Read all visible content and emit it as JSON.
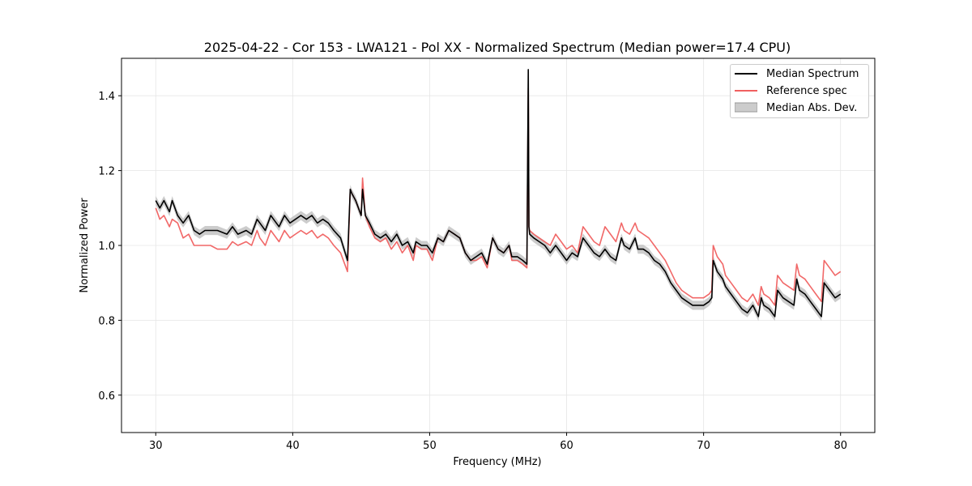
{
  "chart_data": {
    "type": "line",
    "title": "2025-04-22 - Cor 153 - LWA121 - Pol XX - Normalized Spectrum (Median power=17.4 CPU)",
    "xlabel": "Frequency (MHz)",
    "ylabel": "Normalized Power",
    "xlim": [
      27.5,
      82.5
    ],
    "ylim": [
      0.5,
      1.5
    ],
    "x_ticks": [
      30,
      40,
      50,
      60,
      70,
      80
    ],
    "y_ticks": [
      0.6,
      0.8,
      1.0,
      1.2,
      1.4
    ],
    "x_tick_labels": [
      "30",
      "40",
      "50",
      "60",
      "70",
      "80"
    ],
    "y_tick_labels": [
      "0.6",
      "0.8",
      "1.0",
      "1.2",
      "1.4"
    ],
    "grid": true,
    "legend_position": "top-right",
    "series": [
      {
        "name": "Median Spectrum",
        "color": "#000000",
        "x": [
          30.0,
          30.3,
          30.6,
          31.0,
          31.2,
          31.6,
          32.0,
          32.4,
          32.8,
          33.2,
          33.6,
          34.0,
          34.5,
          35.2,
          35.6,
          36.0,
          36.6,
          37.0,
          37.4,
          37.6,
          38.0,
          38.4,
          38.6,
          39.0,
          39.4,
          39.8,
          40.2,
          40.6,
          41.0,
          41.4,
          41.8,
          42.2,
          42.6,
          43.0,
          43.5,
          44.0,
          44.2,
          44.3,
          44.6,
          45.0,
          45.1,
          45.3,
          45.6,
          46.0,
          46.4,
          46.8,
          47.2,
          47.6,
          48.0,
          48.4,
          48.8,
          49.0,
          49.4,
          49.8,
          50.2,
          50.6,
          51.0,
          51.4,
          51.8,
          52.2,
          52.6,
          53.0,
          53.4,
          53.8,
          54.2,
          54.6,
          55.0,
          55.4,
          55.8,
          56.0,
          56.4,
          56.8,
          57.1,
          57.2,
          57.25,
          57.3,
          57.6,
          58.0,
          58.4,
          58.8,
          59.2,
          59.6,
          60.0,
          60.4,
          60.8,
          61.2,
          61.6,
          62.0,
          62.4,
          62.8,
          63.2,
          63.6,
          64.0,
          64.2,
          64.6,
          65.0,
          65.2,
          65.6,
          66.0,
          66.4,
          66.8,
          67.2,
          67.6,
          68.0,
          68.4,
          68.8,
          69.2,
          69.6,
          70.0,
          70.4,
          70.6,
          70.7,
          71.0,
          71.4,
          71.6,
          72.0,
          72.4,
          72.8,
          73.2,
          73.6,
          74.0,
          74.2,
          74.4,
          74.8,
          75.2,
          75.4,
          75.8,
          76.2,
          76.6,
          76.8,
          77.0,
          77.4,
          77.8,
          78.2,
          78.6,
          78.8,
          79.2,
          79.6,
          80.0
        ],
        "values": [
          1.12,
          1.1,
          1.12,
          1.09,
          1.12,
          1.08,
          1.06,
          1.08,
          1.04,
          1.03,
          1.04,
          1.04,
          1.04,
          1.03,
          1.05,
          1.03,
          1.04,
          1.03,
          1.07,
          1.06,
          1.04,
          1.08,
          1.07,
          1.05,
          1.08,
          1.06,
          1.07,
          1.08,
          1.07,
          1.08,
          1.06,
          1.07,
          1.06,
          1.04,
          1.02,
          0.96,
          1.15,
          1.14,
          1.12,
          1.08,
          1.15,
          1.08,
          1.06,
          1.03,
          1.02,
          1.03,
          1.01,
          1.03,
          1.0,
          1.01,
          0.98,
          1.01,
          1.0,
          1.0,
          0.98,
          1.02,
          1.01,
          1.04,
          1.03,
          1.02,
          0.98,
          0.96,
          0.97,
          0.98,
          0.95,
          1.02,
          0.99,
          0.98,
          1.0,
          0.97,
          0.97,
          0.96,
          0.95,
          1.47,
          1.05,
          1.03,
          1.02,
          1.01,
          1.0,
          0.98,
          1.0,
          0.98,
          0.96,
          0.98,
          0.97,
          1.02,
          1.0,
          0.98,
          0.97,
          0.99,
          0.97,
          0.96,
          1.02,
          1.0,
          0.99,
          1.02,
          0.99,
          0.99,
          0.98,
          0.96,
          0.95,
          0.93,
          0.9,
          0.88,
          0.86,
          0.85,
          0.84,
          0.84,
          0.84,
          0.85,
          0.86,
          0.96,
          0.93,
          0.91,
          0.89,
          0.87,
          0.85,
          0.83,
          0.82,
          0.84,
          0.81,
          0.86,
          0.84,
          0.83,
          0.81,
          0.88,
          0.86,
          0.85,
          0.84,
          0.91,
          0.88,
          0.87,
          0.85,
          0.83,
          0.81,
          0.9,
          0.88,
          0.86,
          0.87
        ]
      },
      {
        "name": "Reference spec",
        "color": "#f06060",
        "x": [
          30.0,
          30.3,
          30.6,
          31.0,
          31.2,
          31.6,
          32.0,
          32.4,
          32.8,
          33.2,
          33.6,
          34.0,
          34.5,
          35.2,
          35.6,
          36.0,
          36.6,
          37.0,
          37.4,
          37.6,
          38.0,
          38.4,
          38.6,
          39.0,
          39.4,
          39.8,
          40.2,
          40.6,
          41.0,
          41.4,
          41.8,
          42.2,
          42.6,
          43.0,
          43.5,
          44.0,
          44.2,
          44.3,
          44.6,
          45.0,
          45.1,
          45.3,
          45.6,
          46.0,
          46.4,
          46.8,
          47.2,
          47.6,
          48.0,
          48.4,
          48.8,
          49.0,
          49.4,
          49.8,
          50.2,
          50.6,
          51.0,
          51.4,
          51.8,
          52.2,
          52.6,
          53.0,
          53.4,
          53.8,
          54.2,
          54.6,
          55.0,
          55.4,
          55.8,
          56.0,
          56.4,
          56.8,
          57.1,
          57.2,
          57.25,
          57.3,
          57.6,
          58.0,
          58.4,
          58.8,
          59.2,
          59.6,
          60.0,
          60.4,
          60.8,
          61.2,
          61.6,
          62.0,
          62.4,
          62.8,
          63.2,
          63.6,
          64.0,
          64.2,
          64.6,
          65.0,
          65.2,
          65.6,
          66.0,
          66.4,
          66.8,
          67.2,
          67.6,
          68.0,
          68.4,
          68.8,
          69.2,
          69.6,
          70.0,
          70.4,
          70.6,
          70.7,
          71.0,
          71.4,
          71.6,
          72.0,
          72.4,
          72.8,
          73.2,
          73.6,
          74.0,
          74.2,
          74.4,
          74.8,
          75.2,
          75.4,
          75.8,
          76.2,
          76.6,
          76.8,
          77.0,
          77.4,
          77.8,
          78.2,
          78.6,
          78.8,
          79.2,
          79.6,
          80.0
        ],
        "values": [
          1.1,
          1.07,
          1.08,
          1.05,
          1.07,
          1.06,
          1.02,
          1.03,
          1.0,
          1.0,
          1.0,
          1.0,
          0.99,
          0.99,
          1.01,
          1.0,
          1.01,
          1.0,
          1.04,
          1.02,
          1.0,
          1.04,
          1.03,
          1.01,
          1.04,
          1.02,
          1.03,
          1.04,
          1.03,
          1.04,
          1.02,
          1.03,
          1.02,
          1.0,
          0.98,
          0.93,
          1.15,
          1.14,
          1.12,
          1.08,
          1.18,
          1.08,
          1.05,
          1.02,
          1.01,
          1.02,
          0.99,
          1.01,
          0.98,
          1.0,
          0.96,
          1.0,
          0.99,
          0.99,
          0.96,
          1.02,
          1.01,
          1.04,
          1.03,
          1.02,
          0.98,
          0.96,
          0.96,
          0.97,
          0.94,
          1.02,
          0.99,
          0.98,
          1.0,
          0.96,
          0.96,
          0.95,
          0.94,
          1.42,
          1.05,
          1.04,
          1.03,
          1.02,
          1.01,
          1.0,
          1.03,
          1.01,
          0.99,
          1.0,
          0.98,
          1.05,
          1.03,
          1.01,
          1.0,
          1.05,
          1.03,
          1.01,
          1.06,
          1.04,
          1.03,
          1.06,
          1.04,
          1.03,
          1.02,
          1.0,
          0.98,
          0.96,
          0.93,
          0.9,
          0.88,
          0.87,
          0.86,
          0.86,
          0.86,
          0.87,
          0.88,
          1.0,
          0.97,
          0.95,
          0.92,
          0.9,
          0.88,
          0.86,
          0.85,
          0.87,
          0.84,
          0.89,
          0.87,
          0.86,
          0.84,
          0.92,
          0.9,
          0.89,
          0.88,
          0.95,
          0.92,
          0.91,
          0.89,
          0.87,
          0.85,
          0.96,
          0.94,
          0.92,
          0.93
        ]
      }
    ],
    "band": {
      "name": "Median Abs. Dev.",
      "color": "#bbbbbb",
      "center_series": "Median Spectrum",
      "half_width": 0.012
    }
  }
}
